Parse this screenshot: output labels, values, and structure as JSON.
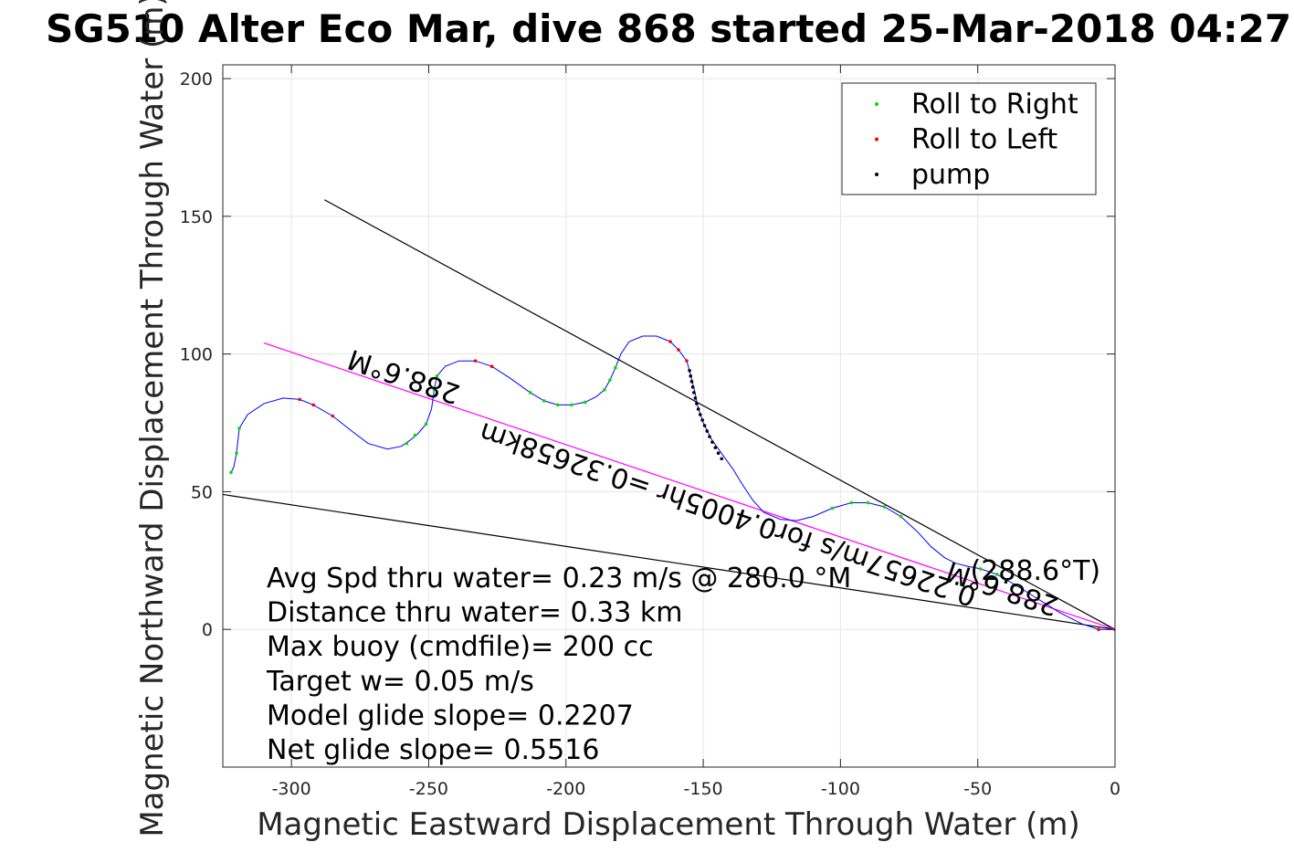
{
  "chart_data": {
    "type": "line",
    "title": "SG510 Alter Eco Mar, dive 868 started 25-Mar-2018 04:27",
    "xlabel": "Magnetic Eastward Displacement Through Water (m)",
    "ylabel": "Magnetic Northward Displacement Through Water (m)",
    "xlim": [
      -325,
      0
    ],
    "ylim": [
      -50,
      205
    ],
    "xticks": [
      -300,
      -250,
      -200,
      -150,
      -100,
      -50,
      0
    ],
    "yticks": [
      0,
      50,
      100,
      150,
      200
    ],
    "grid": true,
    "legend_position": "top-right",
    "legend": [
      {
        "label": "Roll to Right",
        "color": "#00dd00"
      },
      {
        "label": "Roll to Left",
        "color": "#ff0000"
      },
      {
        "label": "pump",
        "color": "#000000"
      }
    ],
    "track": {
      "name": "glider track",
      "color": "#0000ff",
      "points": [
        [
          -322,
          57
        ],
        [
          -321,
          59
        ],
        [
          -320,
          64
        ],
        [
          -319,
          73
        ],
        [
          -316,
          78
        ],
        [
          -310,
          82
        ],
        [
          -303,
          84
        ],
        [
          -297,
          83.5
        ],
        [
          -292,
          81.5
        ],
        [
          -285,
          77.5
        ],
        [
          -278,
          72
        ],
        [
          -272,
          67.5
        ],
        [
          -265,
          65.5
        ],
        [
          -260,
          66.5
        ],
        [
          -257,
          68.5
        ],
        [
          -254,
          71
        ],
        [
          -251,
          74.5
        ],
        [
          -249,
          80
        ],
        [
          -248,
          87
        ],
        [
          -247,
          92
        ],
        [
          -244,
          95.5
        ],
        [
          -239,
          97.5
        ],
        [
          -233,
          97.5
        ],
        [
          -227,
          95.5
        ],
        [
          -220,
          91
        ],
        [
          -213,
          86
        ],
        [
          -208,
          83
        ],
        [
          -203,
          81.5
        ],
        [
          -198,
          81.5
        ],
        [
          -193,
          82.5
        ],
        [
          -189,
          84.5
        ],
        [
          -186,
          87
        ],
        [
          -184,
          90.5
        ],
        [
          -182,
          95
        ],
        [
          -180,
          100
        ],
        [
          -177,
          104.5
        ],
        [
          -172,
          106.5
        ],
        [
          -167,
          106.5
        ],
        [
          -162,
          104.5
        ],
        [
          -159,
          101.5
        ],
        [
          -156,
          97.5
        ],
        [
          -155,
          94
        ],
        [
          -154,
          90
        ],
        [
          -153,
          86
        ],
        [
          -152,
          81
        ],
        [
          -150,
          75
        ],
        [
          -147,
          69
        ],
        [
          -143,
          63.5
        ],
        [
          -139,
          58
        ],
        [
          -136,
          53
        ],
        [
          -132,
          47
        ],
        [
          -128,
          42.5
        ],
        [
          -122,
          40
        ],
        [
          -116,
          39.5
        ],
        [
          -110,
          41
        ],
        [
          -103,
          44
        ],
        [
          -96,
          46
        ],
        [
          -90,
          46
        ],
        [
          -84,
          44.5
        ],
        [
          -78,
          41
        ],
        [
          -72,
          35.5
        ],
        [
          -67,
          30
        ],
        [
          -62,
          26
        ],
        [
          -58,
          24
        ],
        [
          -54,
          23
        ],
        [
          -49,
          22
        ],
        [
          -43,
          20
        ],
        [
          -36,
          16
        ],
        [
          -28,
          11
        ],
        [
          -20,
          6
        ],
        [
          -12,
          2
        ],
        [
          -6,
          0
        ],
        [
          0,
          0
        ]
      ]
    },
    "rolls_right": [
      [
        -322,
        57
      ],
      [
        -320,
        64
      ],
      [
        -319,
        73
      ],
      [
        -258,
        67.5
      ],
      [
        -255,
        70.5
      ],
      [
        -251,
        74.5
      ],
      [
        -248,
        87
      ],
      [
        -247,
        92
      ],
      [
        -213,
        86
      ],
      [
        -208,
        83
      ],
      [
        -203,
        81.5
      ],
      [
        -198,
        81.5
      ],
      [
        -193,
        82.5
      ],
      [
        -186,
        87
      ],
      [
        -184,
        90.5
      ],
      [
        -182,
        95
      ],
      [
        -103,
        44
      ],
      [
        -96,
        46
      ],
      [
        -90,
        46
      ],
      [
        -84,
        44.5
      ],
      [
        -78,
        41
      ],
      [
        -49,
        22
      ],
      [
        -43,
        20
      ],
      [
        -36,
        16
      ],
      [
        -28,
        11
      ]
    ],
    "rolls_left": [
      [
        -297,
        83.5
      ],
      [
        -292,
        81.5
      ],
      [
        -285,
        77.5
      ],
      [
        -233,
        97.5
      ],
      [
        -227,
        95.5
      ],
      [
        -162,
        104.5
      ],
      [
        -159,
        101.5
      ],
      [
        -156,
        97.5
      ],
      [
        -6,
        0
      ],
      [
        0,
        0
      ]
    ],
    "pumps": [
      [
        -155,
        94
      ],
      [
        -154.6,
        92
      ],
      [
        -154.2,
        90
      ],
      [
        -153.8,
        88
      ],
      [
        -153.4,
        86
      ],
      [
        -152.9,
        84
      ],
      [
        -152.4,
        82
      ],
      [
        -151.8,
        80
      ],
      [
        -151.1,
        78
      ],
      [
        -150.3,
        76
      ],
      [
        -149.5,
        74
      ],
      [
        -148.6,
        72
      ],
      [
        -147.7,
        70
      ],
      [
        -146.7,
        68
      ],
      [
        -145.6,
        66
      ],
      [
        -144.5,
        64
      ],
      [
        -143.3,
        62
      ]
    ],
    "reference_lines": [
      {
        "name": "upper-bound-line",
        "color": "#000000",
        "points": [
          [
            -288,
            156
          ],
          [
            0,
            0
          ]
        ]
      },
      {
        "name": "lower-bound-line",
        "color": "#000000",
        "points": [
          [
            -325,
            49
          ],
          [
            0,
            0
          ]
        ]
      },
      {
        "name": "mean-heading-line",
        "color": "#ff00ff",
        "points": [
          [
            -310,
            104
          ],
          [
            0,
            0
          ]
        ]
      }
    ],
    "annotations": [
      {
        "text": "288.6°M",
        "x": -258,
        "y": 95,
        "angle": 198.6
      },
      {
        "text": "0.22657m/s for0.4005hr =0.32658km",
        "x": -140,
        "y": 45,
        "angle": 198.6
      },
      {
        "text": "288.6°M",
        "x": -40,
        "y": 18,
        "angle": 198.6
      },
      {
        "text": "(288.6°T)",
        "x": -29,
        "y": 18,
        "angle": 0
      }
    ],
    "stats": [
      "Avg Spd thru water=  0.23 m/s @ 280.0 °M",
      "Distance thru water=  0.33 km",
      "Max buoy (cmdfile)= 200 cc",
      "Target w= 0.05 m/s",
      "Model glide slope= 0.2207",
      "Net glide slope= 0.5516"
    ]
  }
}
